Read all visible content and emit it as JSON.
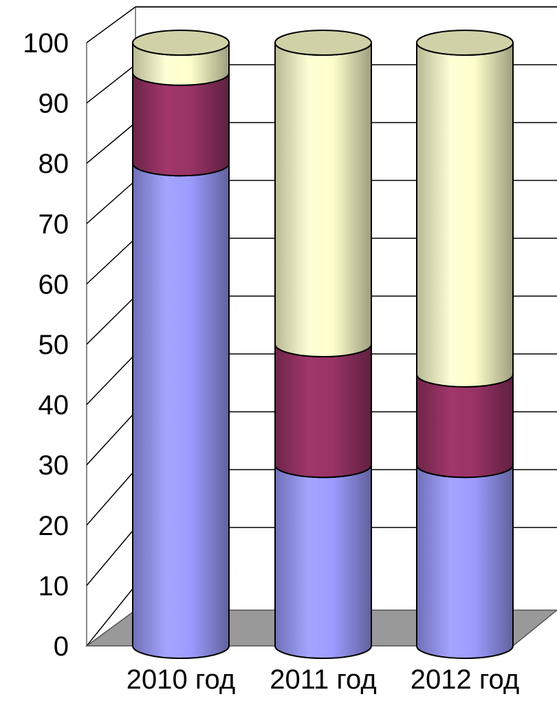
{
  "chart_data": {
    "type": "bar",
    "stacked": true,
    "style": "3d-cylinder",
    "categories": [
      "2010 год",
      "2011 год",
      "2012 год"
    ],
    "series": [
      {
        "values": [
          80,
          30,
          30
        ],
        "color": "#9c9cff"
      },
      {
        "values": [
          15,
          20,
          15
        ],
        "color": "#993366"
      },
      {
        "values": [
          5,
          50,
          55
        ],
        "color": "#ffffcc"
      }
    ],
    "y_ticks": [
      "0",
      "10",
      "20",
      "30",
      "40",
      "50",
      "60",
      "70",
      "80",
      "90",
      "100"
    ],
    "ylim": [
      0,
      100
    ],
    "grid": true,
    "title": "",
    "xlabel": "",
    "ylabel": "",
    "floor_color": "#999999"
  }
}
